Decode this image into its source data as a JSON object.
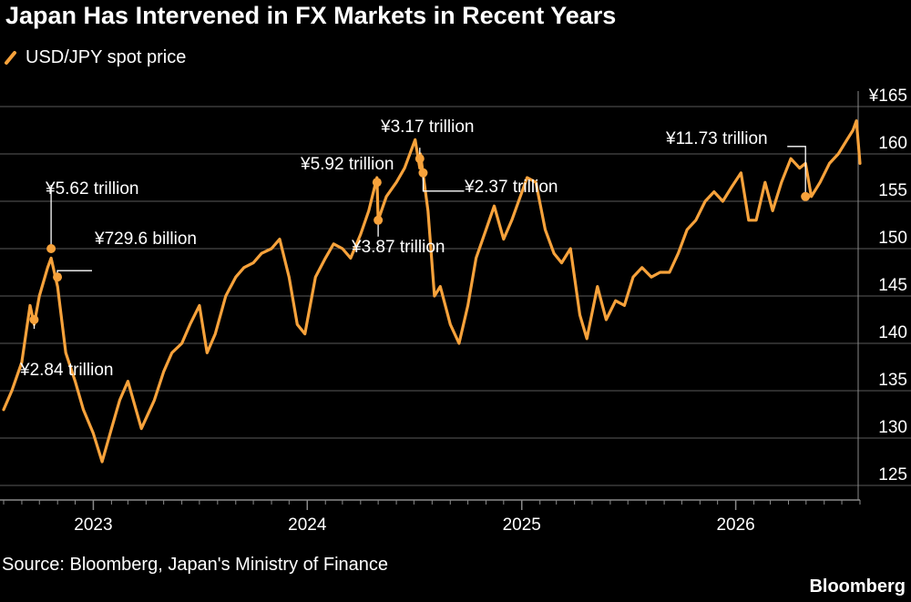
{
  "header": {
    "title": "Japan Has Intervened in FX Markets in Recent Years"
  },
  "footer": {
    "source": "Source: Bloomberg, Japan's Ministry of Finance",
    "brand": "Bloomberg"
  },
  "colors": {
    "series": "#f7a23b",
    "grid": "#5a5a5a",
    "axis": "#8a8a8a"
  },
  "chart_data": {
    "type": "line",
    "title": "Japan Has Intervened in FX Markets in Recent Years",
    "grid": true,
    "legend_position": "top-left",
    "y_axis_side": "right",
    "ylim": [
      123,
      166
    ],
    "y_ticks": [
      {
        "value": 165,
        "label": "¥165"
      },
      {
        "value": 160,
        "label": "160"
      },
      {
        "value": 155,
        "label": "155"
      },
      {
        "value": 150,
        "label": "150"
      },
      {
        "value": 145,
        "label": "145"
      },
      {
        "value": 140,
        "label": "140"
      },
      {
        "value": 135,
        "label": "135"
      },
      {
        "value": 130,
        "label": "130"
      },
      {
        "value": 125,
        "label": "125"
      }
    ],
    "x_range": [
      "2022-08-01",
      "2026-08-01"
    ],
    "x_ticks": [
      {
        "value": "2023-01-01",
        "label": "2023"
      },
      {
        "value": "2024-01-01",
        "label": "2024"
      },
      {
        "value": "2025-01-01",
        "label": "2025"
      },
      {
        "value": "2026-01-01",
        "label": "2026"
      }
    ],
    "series": [
      {
        "name": "USD/JPY spot price",
        "x": [
          "2022-08-01",
          "2022-08-15",
          "2022-09-01",
          "2022-09-15",
          "2022-09-22",
          "2022-10-01",
          "2022-10-15",
          "2022-10-21",
          "2022-11-01",
          "2022-11-15",
          "2022-12-01",
          "2022-12-15",
          "2023-01-01",
          "2023-01-16",
          "2023-02-01",
          "2023-02-15",
          "2023-03-01",
          "2023-03-24",
          "2023-04-15",
          "2023-05-01",
          "2023-05-15",
          "2023-06-01",
          "2023-06-15",
          "2023-07-01",
          "2023-07-14",
          "2023-07-28",
          "2023-08-15",
          "2023-09-01",
          "2023-09-15",
          "2023-10-01",
          "2023-10-15",
          "2023-11-01",
          "2023-11-15",
          "2023-12-01",
          "2023-12-15",
          "2023-12-28",
          "2024-01-15",
          "2024-02-01",
          "2024-02-15",
          "2024-03-01",
          "2024-03-15",
          "2024-04-01",
          "2024-04-15",
          "2024-04-29",
          "2024-05-01",
          "2024-05-15",
          "2024-06-01",
          "2024-06-15",
          "2024-07-03",
          "2024-07-11",
          "2024-07-12",
          "2024-07-25",
          "2024-08-05",
          "2024-08-15",
          "2024-09-01",
          "2024-09-16",
          "2024-10-01",
          "2024-10-15",
          "2024-11-01",
          "2024-11-15",
          "2024-12-01",
          "2024-12-15",
          "2025-01-10",
          "2025-01-25",
          "2025-02-10",
          "2025-02-25",
          "2025-03-10",
          "2025-03-25",
          "2025-04-10",
          "2025-04-22",
          "2025-05-10",
          "2025-05-25",
          "2025-06-10",
          "2025-06-25",
          "2025-07-10",
          "2025-07-25",
          "2025-08-10",
          "2025-08-25",
          "2025-09-10",
          "2025-09-25",
          "2025-10-10",
          "2025-10-25",
          "2025-11-10",
          "2025-11-25",
          "2025-12-10",
          "2025-12-25",
          "2026-01-10",
          "2026-01-23",
          "2026-02-05",
          "2026-02-20",
          "2026-03-05",
          "2026-03-20",
          "2026-04-05",
          "2026-04-20",
          "2026-04-30",
          "2026-05-10",
          "2026-05-25",
          "2026-06-10",
          "2026-06-25",
          "2026-07-10",
          "2026-07-20",
          "2026-07-26",
          "2026-08-01"
        ],
        "values": [
          133,
          135,
          138,
          144,
          142,
          145,
          148,
          149,
          146,
          139,
          136,
          133,
          130.5,
          127.5,
          131,
          134,
          136,
          131,
          134,
          137,
          139,
          140,
          142,
          144,
          139,
          141,
          145,
          147,
          148,
          148.5,
          149.5,
          150,
          151,
          147,
          142,
          141,
          147,
          149,
          150.5,
          150,
          149,
          151.5,
          154,
          157.5,
          153,
          155.5,
          157,
          158.5,
          161.5,
          158.5,
          160,
          154,
          145,
          146,
          142,
          140,
          144,
          149,
          152,
          154.5,
          151,
          153,
          157.5,
          157,
          152,
          149.5,
          148.5,
          150,
          143,
          140.5,
          146,
          142.5,
          144.5,
          144,
          147,
          148,
          147,
          147.5,
          147.5,
          149.5,
          152,
          153,
          155,
          156,
          155,
          156.5,
          158,
          153,
          153,
          157,
          154,
          157,
          159.5,
          158.5,
          159,
          155.5,
          157,
          159,
          160,
          161.5,
          162.5,
          163.5,
          159
        ]
      }
    ],
    "annotations": [
      {
        "label": "¥2.84 trillion",
        "date": "2022-09-22",
        "value": 142.5
      },
      {
        "label": "¥5.62 trillion",
        "date": "2022-10-21",
        "value": 150
      },
      {
        "label": "¥729.6 billion",
        "date": "2022-10-24",
        "value": 147
      },
      {
        "label": "¥5.92 trillion",
        "date": "2024-04-29",
        "value": 157
      },
      {
        "label": "¥3.87 trillion",
        "date": "2024-05-01",
        "value": 153
      },
      {
        "label": "¥3.17 trillion",
        "date": "2024-07-11",
        "value": 159.5
      },
      {
        "label": "¥2.37 trillion",
        "date": "2024-07-12",
        "value": 158
      },
      {
        "label": "¥11.73 trillion",
        "date": "2026-04-30",
        "value": 155.5
      }
    ]
  }
}
